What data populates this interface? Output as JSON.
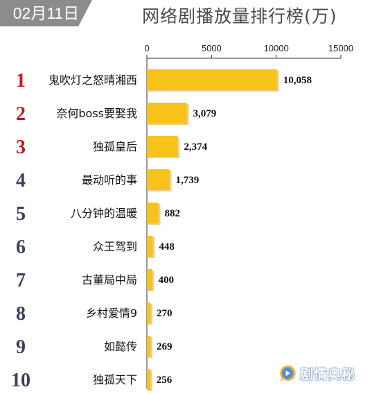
{
  "header": {
    "date": "02月11日",
    "title": "网络剧播放量排行榜(万)"
  },
  "watermark": {
    "icon": "play-bubble-icon",
    "text": "剧情奥秘"
  },
  "colors": {
    "bar": "#f7c21a",
    "rank_top": "#c8161d",
    "rank_rest": "#3a3f5c",
    "axis": "#333333"
  },
  "chart_data": {
    "type": "bar",
    "orientation": "horizontal",
    "title": "网络剧播放量排行榜(万)",
    "xlim": [
      0,
      15000
    ],
    "x_ticks": [
      0,
      5000,
      10000,
      15000
    ],
    "tick_labels": [
      "0",
      "5000",
      "10000",
      "15000"
    ],
    "axis_position": "top",
    "grid": false,
    "ranks": [
      "1",
      "2",
      "3",
      "4",
      "5",
      "6",
      "7",
      "8",
      "9",
      "10"
    ],
    "categories": [
      "鬼吹灯之怒晴湘西",
      "奈何boss要娶我",
      "独孤皇后",
      "最动听的事",
      "八分钟的温暖",
      "众王驾到",
      "古董局中局",
      "乡村爱情9",
      "如懿传",
      "独孤天下"
    ],
    "values": [
      10058,
      3079,
      2374,
      1739,
      882,
      448,
      400,
      270,
      269,
      256
    ],
    "value_labels": [
      "10,058",
      "3,079",
      "2,374",
      "1,739",
      "882",
      "448",
      "400",
      "270",
      "269",
      "256"
    ]
  }
}
